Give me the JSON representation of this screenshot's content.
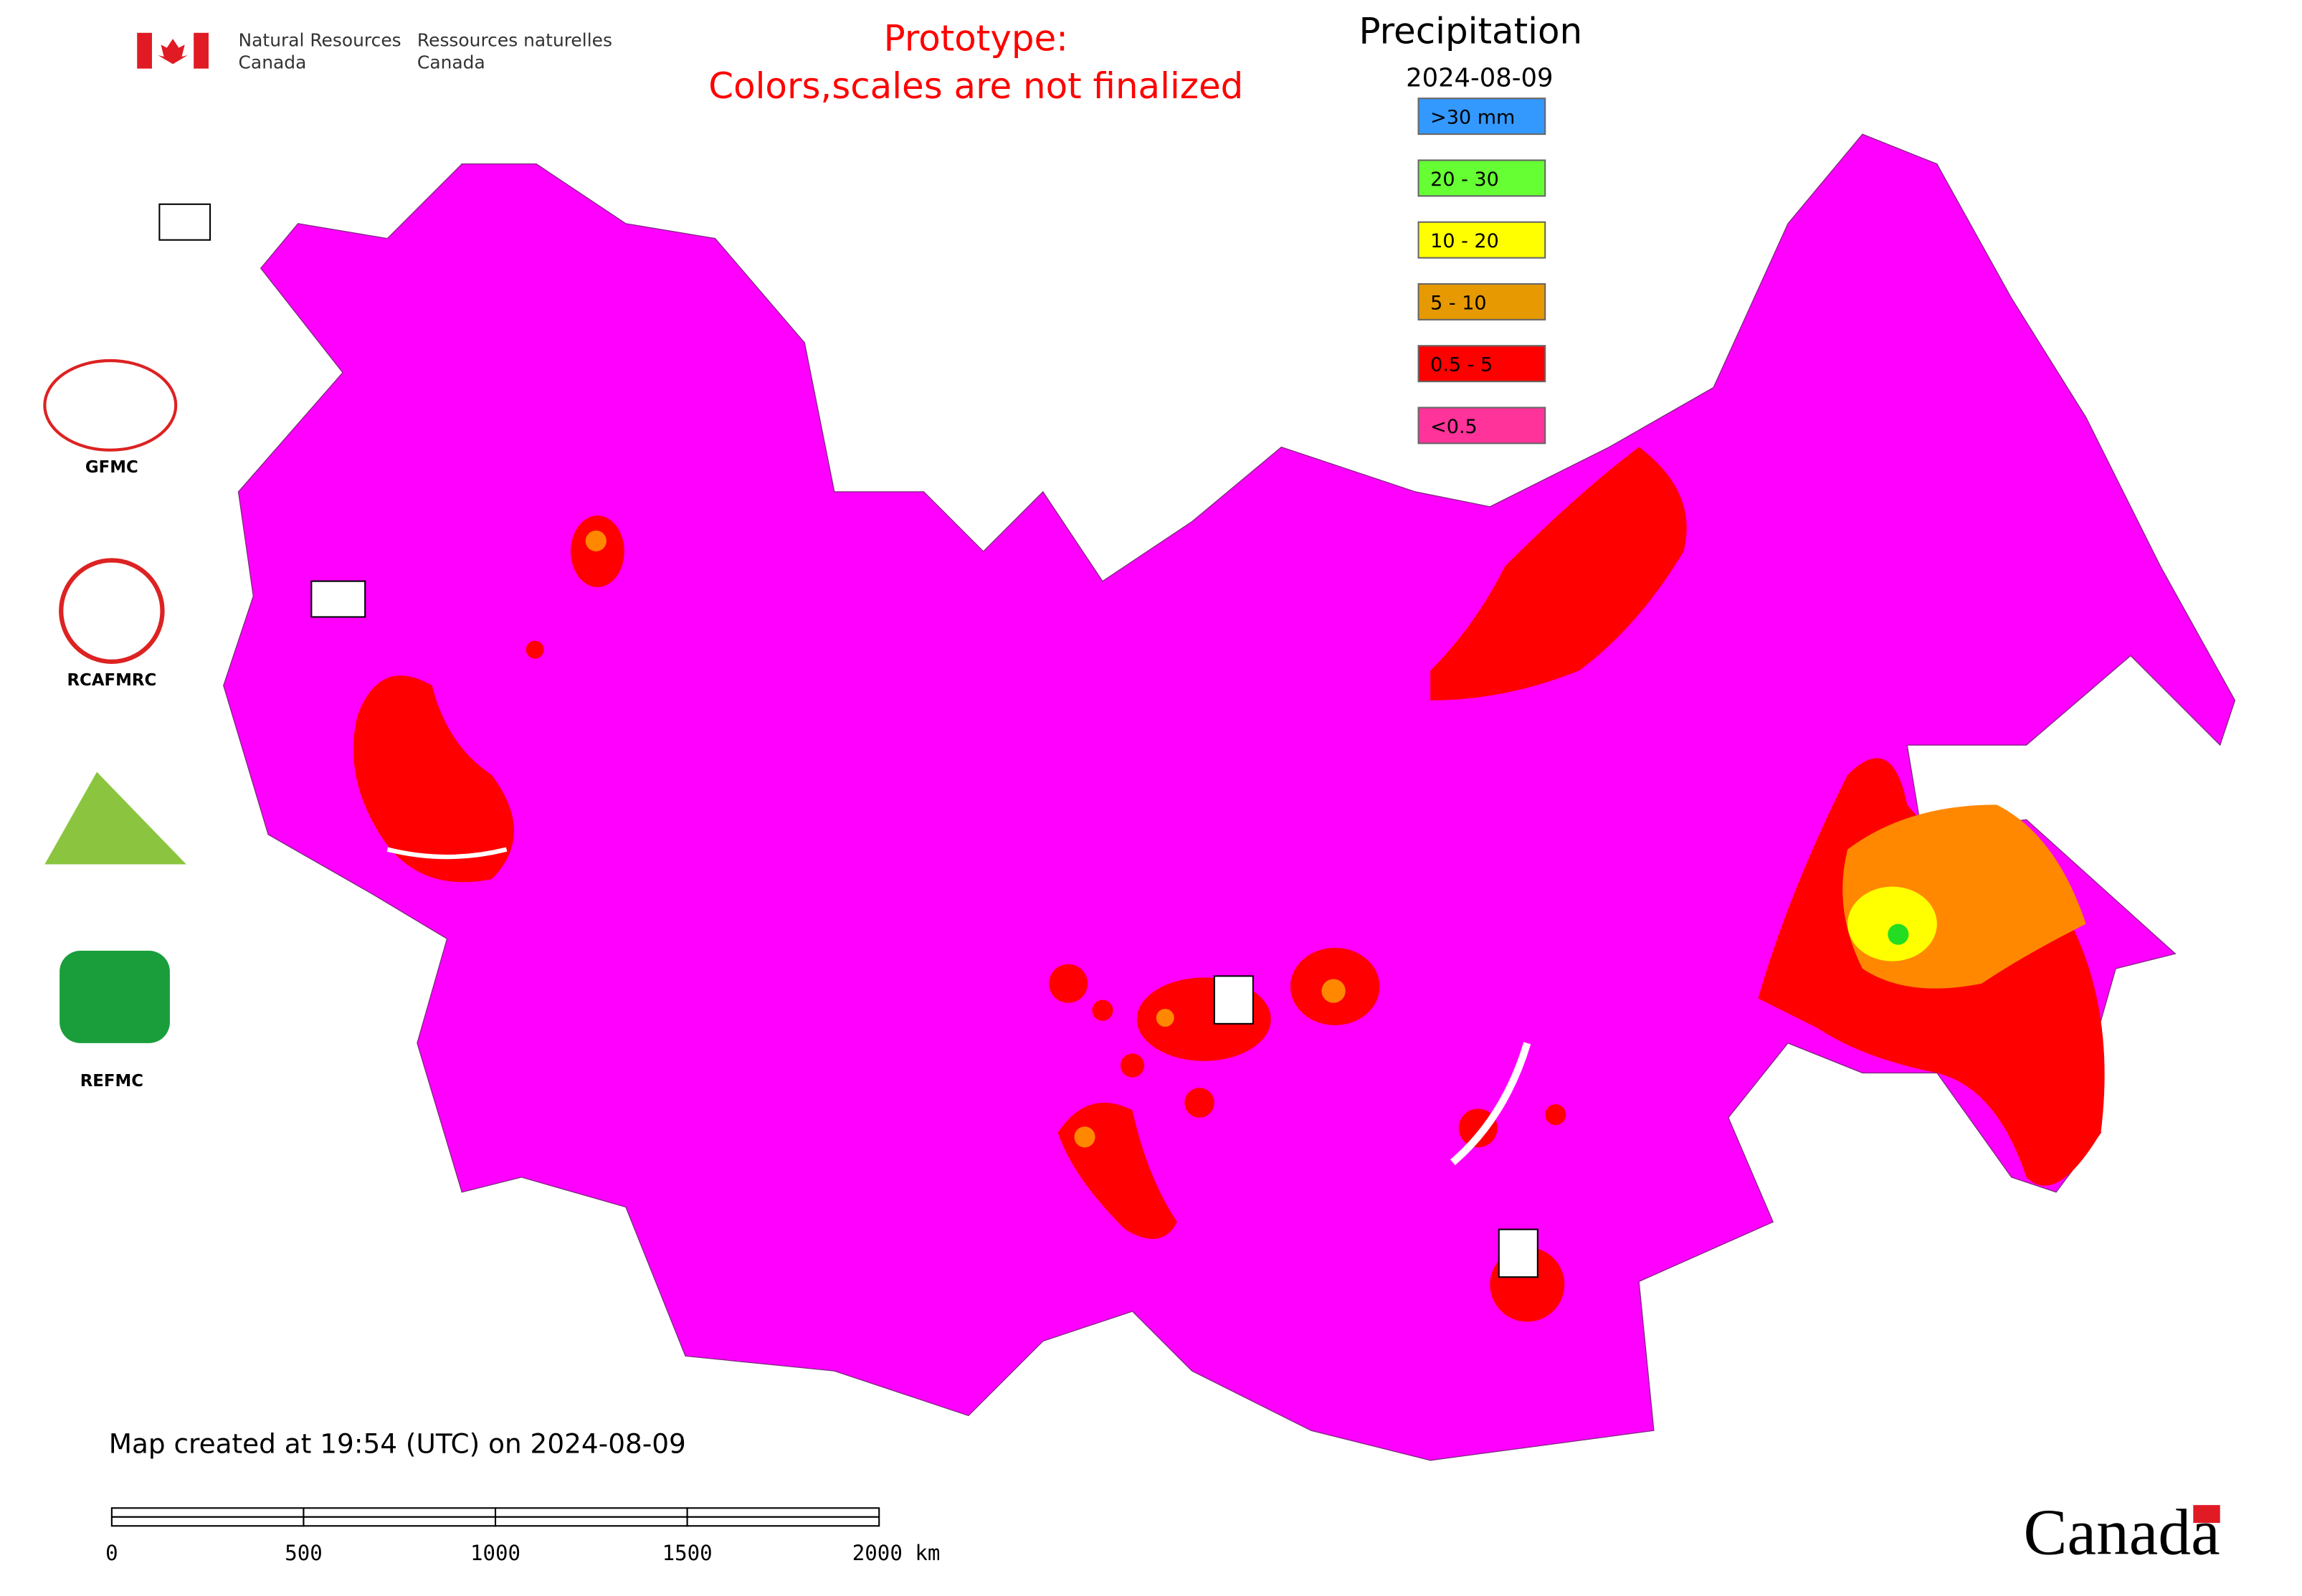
{
  "header": {
    "department_en": "Natural Resources",
    "country_en": "Canada",
    "department_fr": "Ressources naturelles",
    "country_fr": "Canada"
  },
  "notice": {
    "line1": "Prototype:",
    "line2": "Colors,scales are not finalized"
  },
  "legend": {
    "title": "Precipitation",
    "date": "2024-08-09",
    "items": [
      {
        "label": ">30 mm",
        "color": "#3399ff"
      },
      {
        "label": "20 - 30",
        "color": "#66ff33"
      },
      {
        "label": "10 - 20",
        "color": "#ffff00"
      },
      {
        "label": "5 - 10",
        "color": "#e69900"
      },
      {
        "label": "0.5 - 5",
        "color": "#ff0000"
      },
      {
        "label": "<0.5",
        "color": "#ff3399"
      }
    ]
  },
  "logos": [
    "GFMC",
    "RCAFMRC",
    "REFMC"
  ],
  "footer": {
    "created": "Map created at 19:54 (UTC) on 2024-08-09",
    "wordmark": "Canada"
  },
  "scale_bar": {
    "labels": [
      "0",
      "500",
      "1000",
      "1500",
      "2000 km"
    ]
  }
}
